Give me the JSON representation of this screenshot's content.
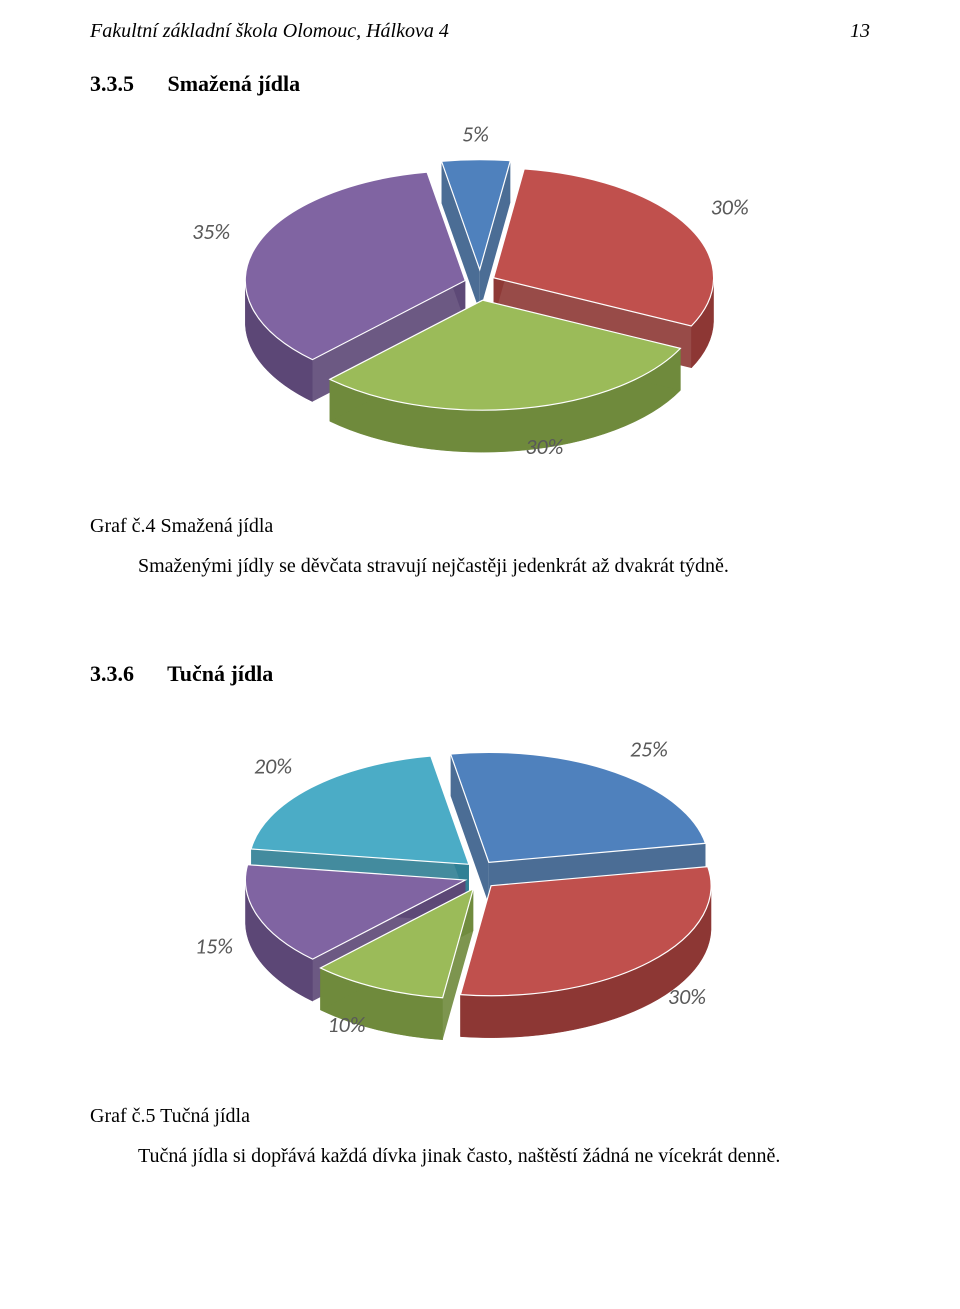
{
  "header": {
    "title": "Fakultní základní škola Olomouc, Hálkova 4",
    "page_number": "13"
  },
  "section1": {
    "number": "3.3.5",
    "title": "Smažená jídla",
    "caption": "Graf č.4 Smažená jídla",
    "body": "Smaženými jídly se děvčata stravují nejčastěji jedenkrát až dvakrát týdně.",
    "chart": {
      "type": "pie-3d-exploded",
      "background_color": "#ffffff",
      "label_color": "#595959",
      "label_font": "Calibri",
      "label_fontsize": 22,
      "label_style": "italic",
      "slices": [
        {
          "label": "5%",
          "value": 5,
          "top_color": "#4f81bd",
          "side_color": "#375d8a"
        },
        {
          "label": "30%",
          "value": 30,
          "top_color": "#c0504d",
          "side_color": "#8d3734"
        },
        {
          "label": "30%",
          "value": 30,
          "top_color": "#9bbb59",
          "side_color": "#6f8a3c"
        },
        {
          "label": "35%",
          "value": 35,
          "top_color": "#8064a2",
          "side_color": "#5c4776"
        }
      ]
    }
  },
  "section2": {
    "number": "3.3.6",
    "title": "Tučná jídla",
    "caption": "Graf č.5 Tučná jídla",
    "body": "Tučná jídla si dopřává každá dívka jinak často, naštěstí žádná ne vícekrát denně.",
    "chart": {
      "type": "pie-3d-exploded",
      "background_color": "#ffffff",
      "label_color": "#595959",
      "label_font": "Calibri",
      "label_fontsize": 22,
      "label_style": "italic",
      "slices": [
        {
          "label": "25%",
          "value": 25,
          "top_color": "#4f81bd",
          "side_color": "#375d8a"
        },
        {
          "label": "30%",
          "value": 30,
          "top_color": "#c0504d",
          "side_color": "#8d3734"
        },
        {
          "label": "10%",
          "value": 10,
          "top_color": "#9bbb59",
          "side_color": "#6f8a3c"
        },
        {
          "label": "15%",
          "value": 15,
          "top_color": "#8064a2",
          "side_color": "#5c4776"
        },
        {
          "label": "20%",
          "value": 20,
          "top_color": "#4bacc6",
          "side_color": "#2f7e93"
        }
      ]
    }
  }
}
